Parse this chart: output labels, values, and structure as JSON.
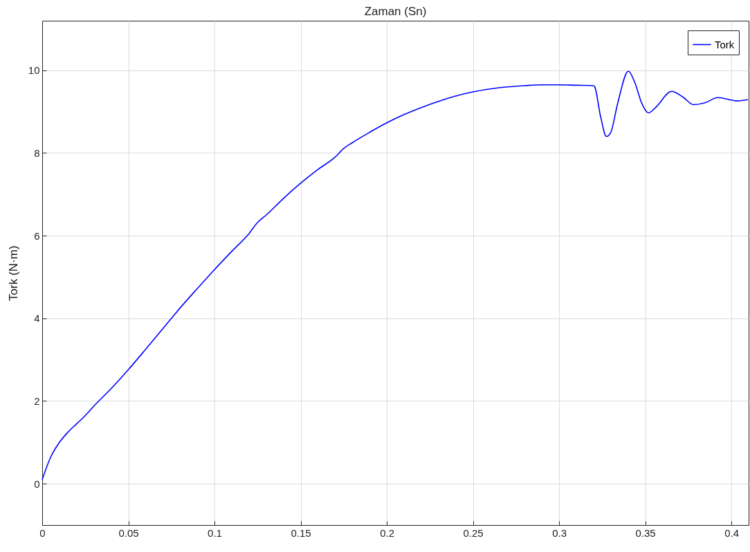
{
  "chart_data": {
    "type": "line",
    "title": "Zaman (Sn)",
    "ylabel": "Tork (N·m)",
    "x": [
      0,
      0.005,
      0.01,
      0.015,
      0.02,
      0.025,
      0.03,
      0.04,
      0.05,
      0.06,
      0.07,
      0.075,
      0.08,
      0.09,
      0.1,
      0.11,
      0.12,
      0.125,
      0.13,
      0.14,
      0.15,
      0.16,
      0.17,
      0.175,
      0.18,
      0.19,
      0.2,
      0.21,
      0.22,
      0.23,
      0.24,
      0.25,
      0.26,
      0.27,
      0.28,
      0.29,
      0.3,
      0.31,
      0.32,
      0.3207,
      0.324,
      0.3275,
      0.33,
      0.334,
      0.3402,
      0.344,
      0.348,
      0.3519,
      0.356,
      0.3653,
      0.372,
      0.378,
      0.385,
      0.392,
      0.398,
      0.4034,
      0.4096
    ],
    "series": [
      {
        "name": "Tork",
        "color": "#0000ff",
        "values": [
          0.1,
          0.65,
          1.0,
          1.25,
          1.45,
          1.65,
          1.88,
          2.3,
          2.76,
          3.25,
          3.75,
          4.0,
          4.25,
          4.72,
          5.18,
          5.62,
          6.05,
          6.32,
          6.5,
          6.9,
          7.27,
          7.6,
          7.9,
          8.11,
          8.25,
          8.5,
          8.73,
          8.93,
          9.1,
          9.25,
          9.38,
          9.48,
          9.55,
          9.6,
          9.63,
          9.65,
          9.65,
          9.64,
          9.63,
          9.6,
          8.9,
          8.4,
          8.5,
          9.2,
          9.98,
          9.7,
          9.2,
          8.97,
          9.1,
          9.49,
          9.35,
          9.17,
          9.22,
          9.34,
          9.3,
          9.26,
          9.29
        ]
      }
    ],
    "xlim": [
      0,
      0.41
    ],
    "xticks": [
      0,
      0.05,
      0.1,
      0.15,
      0.2,
      0.25,
      0.3,
      0.35,
      0.4
    ],
    "ylim": [
      -1,
      11.2
    ],
    "yticks": [
      0,
      2,
      4,
      6,
      8,
      10
    ],
    "grid": true,
    "legend": "top right",
    "line_style": "solid",
    "marker": "none"
  }
}
